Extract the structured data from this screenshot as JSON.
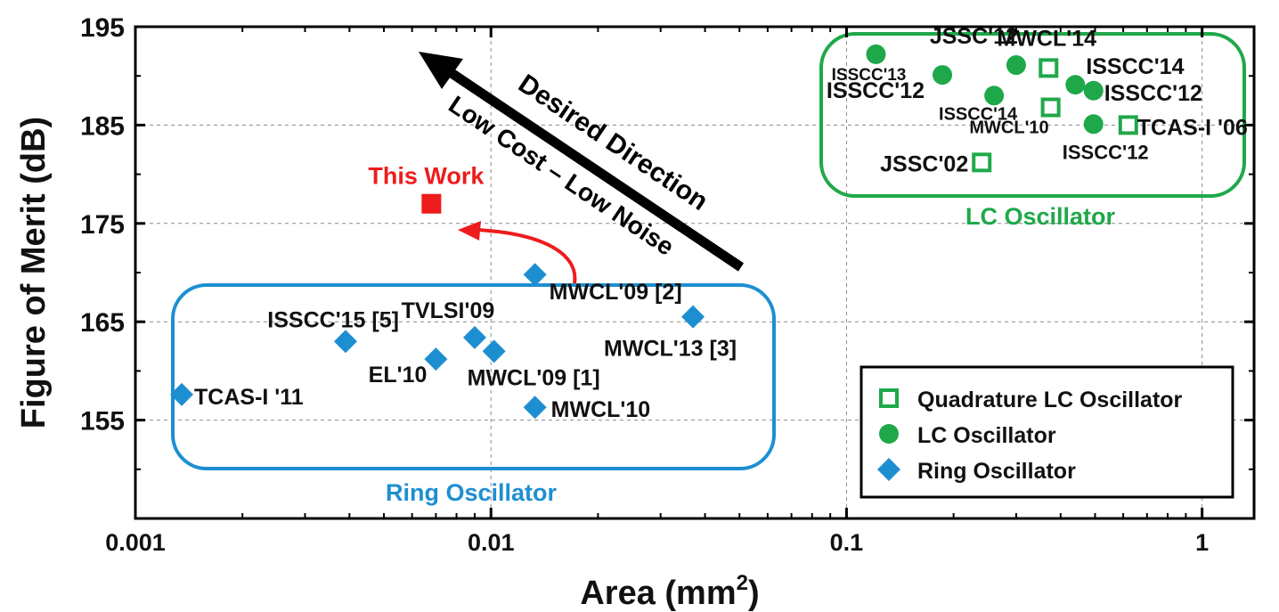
{
  "chart_data": {
    "type": "scatter",
    "xscale": "log",
    "xlim": [
      0.001,
      1.4
    ],
    "ylim": [
      145,
      195
    ],
    "xlabel": "Area (mm",
    "xlabel_sup": "2",
    "xlabel_close": ")",
    "ylabel": "Figure of Merit (dB)",
    "grid": true,
    "x_ticks": [
      {
        "value": 0.001,
        "label": "0.001"
      },
      {
        "value": 0.01,
        "label": "0.01"
      },
      {
        "value": 0.1,
        "label": "0.1"
      },
      {
        "value": 1,
        "label": "1"
      }
    ],
    "y_ticks": [
      {
        "value": 155,
        "label": "155"
      },
      {
        "value": 165,
        "label": "165"
      },
      {
        "value": 175,
        "label": "175"
      },
      {
        "value": 185,
        "label": "185"
      },
      {
        "value": 195,
        "label": "195"
      }
    ],
    "legend": {
      "position": "bottom-right",
      "entries": [
        {
          "label": "Quadrature LC Oscillator",
          "marker": "square-open",
          "color": "#1fa84a"
        },
        {
          "label": "LC Oscillator",
          "marker": "circle",
          "color": "#1fa84a"
        },
        {
          "label": "Ring Oscillator",
          "marker": "diamond",
          "color": "#1d8fd1"
        }
      ]
    },
    "series": [
      {
        "name": "Ring Oscillator",
        "marker": "diamond",
        "color": "#1d8fd1",
        "points": [
          {
            "x": 0.00135,
            "y": 157.6,
            "label": "TCAS-I '11"
          },
          {
            "x": 0.0039,
            "y": 163.0,
            "label": "ISSCC'15 [5]"
          },
          {
            "x": 0.007,
            "y": 161.2,
            "label": "EL'10"
          },
          {
            "x": 0.009,
            "y": 163.4,
            "label": "TVLSI'09"
          },
          {
            "x": 0.0102,
            "y": 162.0,
            "label": "MWCL'09 [1]"
          },
          {
            "x": 0.0133,
            "y": 169.8,
            "label": "MWCL'09 [2]"
          },
          {
            "x": 0.0133,
            "y": 156.3,
            "label": "MWCL'10"
          },
          {
            "x": 0.037,
            "y": 165.5,
            "label": "MWCL'13 [3]"
          }
        ]
      },
      {
        "name": "LC Oscillator",
        "marker": "circle",
        "color": "#1fa84a",
        "points": [
          {
            "x": 0.121,
            "y": 192.2,
            "label": "ISSCC'13"
          },
          {
            "x": 0.186,
            "y": 190.1,
            "label": "ISSCC'12"
          },
          {
            "x": 0.3,
            "y": 191.1,
            "label": "JSSC'12"
          },
          {
            "x": 0.26,
            "y": 188.0,
            "label": "ISSCC'14"
          },
          {
            "x": 0.44,
            "y": 189.1,
            "label": "ISSCC'14"
          },
          {
            "x": 0.495,
            "y": 188.5,
            "label": "ISSCC'12"
          },
          {
            "x": 0.495,
            "y": 185.1,
            "label": "ISSCC'12"
          }
        ]
      },
      {
        "name": "Quadrature LC Oscillator",
        "marker": "square-open",
        "color": "#1fa84a",
        "points": [
          {
            "x": 0.24,
            "y": 181.2,
            "label": "JSSC'02"
          },
          {
            "x": 0.37,
            "y": 190.8,
            "label": "MWCL'14"
          },
          {
            "x": 0.375,
            "y": 186.8,
            "label": "MWCL'10"
          },
          {
            "x": 0.62,
            "y": 185.0,
            "label": "TCAS-I '06"
          }
        ]
      },
      {
        "name": "This Work",
        "marker": "square",
        "color": "#ee1c1c",
        "points": [
          {
            "x": 0.0068,
            "y": 177.0,
            "label": "This Work"
          }
        ]
      }
    ],
    "annotations": {
      "lc_group_label": "LC Oscillator",
      "ring_group_label": "Ring Oscillator",
      "desired_direction": "Desired Direction",
      "low_cost": "Low Cost – Low Noise"
    }
  }
}
